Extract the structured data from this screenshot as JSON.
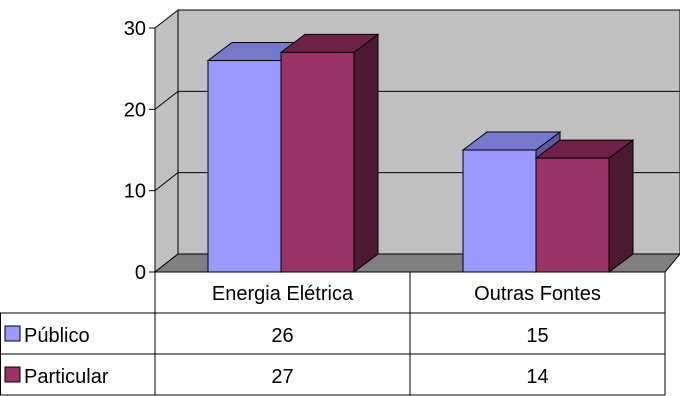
{
  "chart_data": {
    "type": "bar",
    "title": "",
    "xlabel": "",
    "ylabel": "",
    "categories": [
      "Energia Elétrica",
      "Outras Fontes"
    ],
    "series": [
      {
        "name": "Público",
        "values": [
          26,
          15
        ],
        "color": "#9999FF",
        "side_color": "#5A5AA0",
        "top_color": "#7777CC"
      },
      {
        "name": "Particular",
        "values": [
          27,
          14
        ],
        "color": "#993366",
        "side_color": "#4D1A33",
        "top_color": "#6E2247"
      }
    ],
    "y_ticks": [
      "0",
      "10",
      "20",
      "30"
    ],
    "ylim": [
      0,
      30
    ],
    "grid": true,
    "legend": "data-table",
    "data_table": true,
    "wall_color": "#C0C0C0",
    "floor_color": "#808080"
  }
}
